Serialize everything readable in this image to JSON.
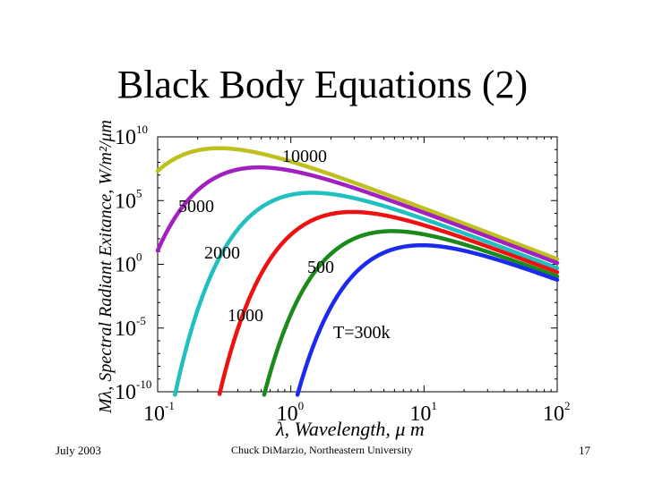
{
  "title": "Black Body Equations (2)",
  "footer": {
    "date": "July 2003",
    "author": "Chuck DiMarzio, Northeastern University",
    "page": "17"
  },
  "chart_data": {
    "type": "line",
    "title": "Black Body Equations (2)",
    "xlabel": "λ, Wavelength, μ m",
    "ylabel": "Mλ, Spectral Radiant Exitance, W/m²/μm",
    "x_scale": "log",
    "y_scale": "log",
    "xlim": [
      0.1,
      100
    ],
    "ylim": [
      1e-10,
      10000000000.0
    ],
    "x_ticks": [
      {
        "base": "10",
        "exp": "-1"
      },
      {
        "base": "10",
        "exp": "0"
      },
      {
        "base": "10",
        "exp": "1"
      },
      {
        "base": "10",
        "exp": "2"
      }
    ],
    "y_ticks": [
      {
        "base": "10",
        "exp": "10"
      },
      {
        "base": "10",
        "exp": "5"
      },
      {
        "base": "10",
        "exp": "0"
      },
      {
        "base": "10",
        "exp": "-5"
      },
      {
        "base": "10",
        "exp": "-10"
      }
    ],
    "grid": false,
    "series": [
      {
        "name": "10000",
        "temperature_k": 10000,
        "color": "#bfbf1f"
      },
      {
        "name": "5000",
        "temperature_k": 5000,
        "color": "#a020c0"
      },
      {
        "name": "2000",
        "temperature_k": 2000,
        "color": "#20c0c0"
      },
      {
        "name": "1000",
        "temperature_k": 1000,
        "color": "#ee1111"
      },
      {
        "name": "500",
        "temperature_k": 500,
        "color": "#1a8a1a"
      },
      {
        "name": "T=300k",
        "temperature_k": 300,
        "color": "#1a2aee"
      }
    ],
    "labels": [
      {
        "text": "10000",
        "series": "10000"
      },
      {
        "text": "5000",
        "series": "5000"
      },
      {
        "text": "2000",
        "series": "2000"
      },
      {
        "text": "1000",
        "series": "1000"
      },
      {
        "text": "500",
        "series": "500"
      },
      {
        "text": "T=300k",
        "series": "T=300k"
      }
    ]
  }
}
